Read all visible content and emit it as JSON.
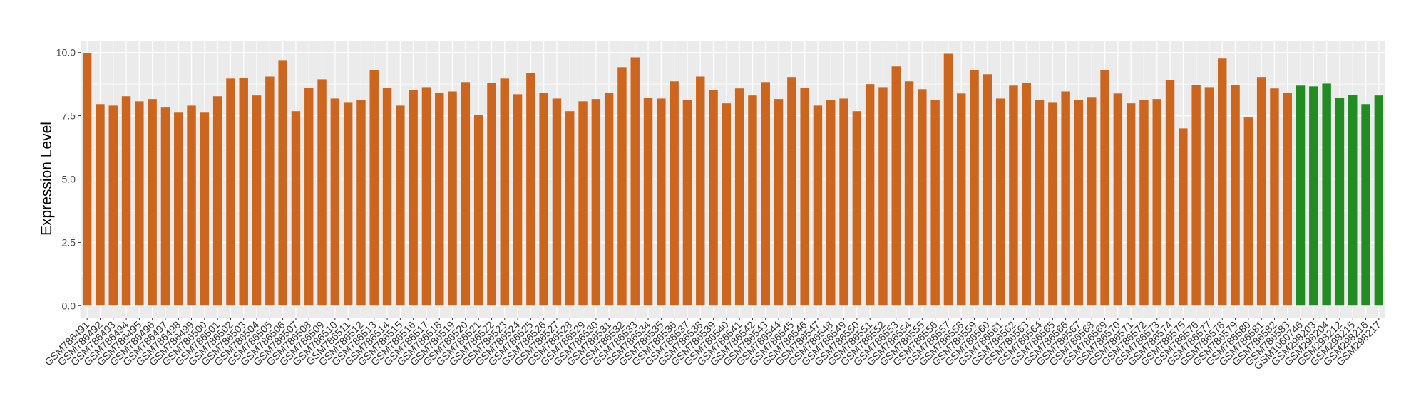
{
  "chart_data": {
    "type": "bar",
    "title": "",
    "xlabel": "",
    "ylabel": "Expression Level",
    "ylim": [
      -0.47,
      10.47
    ],
    "yticks": [
      "0.0",
      "2.5",
      "5.0",
      "7.5",
      "10.0"
    ],
    "grid": true,
    "colors": {
      "group1": "#CC661E",
      "group2": "#228B22",
      "panel": "#EBEBEB",
      "grid": "#FFFFFF"
    },
    "categories": [
      "GSM786491",
      "GSM786492",
      "GSM786493",
      "GSM786494",
      "GSM786495",
      "GSM786496",
      "GSM786497",
      "GSM786498",
      "GSM786499",
      "GSM786500",
      "GSM786501",
      "GSM786502",
      "GSM786503",
      "GSM786504",
      "GSM786505",
      "GSM786506",
      "GSM786507",
      "GSM786508",
      "GSM786509",
      "GSM786510",
      "GSM786511",
      "GSM786512",
      "GSM786513",
      "GSM786514",
      "GSM786515",
      "GSM786516",
      "GSM786517",
      "GSM786518",
      "GSM786519",
      "GSM786520",
      "GSM786521",
      "GSM786522",
      "GSM786523",
      "GSM786524",
      "GSM786525",
      "GSM786526",
      "GSM786527",
      "GSM786528",
      "GSM786529",
      "GSM786530",
      "GSM786531",
      "GSM786532",
      "GSM786533",
      "GSM786534",
      "GSM786535",
      "GSM786536",
      "GSM786537",
      "GSM786538",
      "GSM786539",
      "GSM786540",
      "GSM786541",
      "GSM786542",
      "GSM786543",
      "GSM786544",
      "GSM786545",
      "GSM786546",
      "GSM786547",
      "GSM786548",
      "GSM786549",
      "GSM786550",
      "GSM786551",
      "GSM786552",
      "GSM786553",
      "GSM786554",
      "GSM786555",
      "GSM786556",
      "GSM786557",
      "GSM786558",
      "GSM786559",
      "GSM786560",
      "GSM786561",
      "GSM786562",
      "GSM786563",
      "GSM786564",
      "GSM786565",
      "GSM786566",
      "GSM786567",
      "GSM786568",
      "GSM786569",
      "GSM786570",
      "GSM786571",
      "GSM786572",
      "GSM786573",
      "GSM786574",
      "GSM786575",
      "GSM786576",
      "GSM786577",
      "GSM786578",
      "GSM786579",
      "GSM786580",
      "GSM786581",
      "GSM786582",
      "GSM786583",
      "GSM1060746",
      "GSM298203",
      "GSM298204",
      "GSM298212",
      "GSM298215",
      "GSM298216",
      "GSM298217"
    ],
    "values": [
      9.98,
      7.96,
      7.9,
      8.27,
      8.07,
      8.16,
      7.85,
      7.65,
      7.9,
      7.65,
      8.27,
      8.97,
      9.0,
      8.3,
      9.05,
      9.7,
      7.68,
      8.6,
      8.94,
      8.18,
      8.04,
      8.13,
      9.31,
      8.6,
      7.9,
      8.52,
      8.63,
      8.41,
      8.46,
      8.83,
      7.54,
      8.8,
      8.97,
      8.35,
      9.19,
      8.41,
      8.18,
      7.68,
      8.07,
      8.16,
      8.41,
      9.42,
      9.81,
      8.21,
      8.18,
      8.86,
      8.13,
      9.05,
      8.52,
      7.99,
      8.58,
      8.3,
      8.83,
      8.16,
      9.03,
      8.6,
      7.9,
      8.13,
      8.18,
      7.68,
      8.75,
      8.63,
      9.45,
      8.86,
      8.55,
      8.13,
      9.95,
      8.38,
      9.31,
      9.14,
      8.18,
      8.69,
      8.8,
      8.13,
      8.04,
      8.46,
      8.13,
      8.24,
      9.31,
      8.38,
      7.99,
      8.13,
      8.16,
      8.91,
      7.0,
      8.72,
      8.63,
      9.76,
      8.72,
      7.43,
      9.03,
      8.58,
      8.41,
      8.69,
      8.66,
      8.77,
      8.21,
      8.32,
      7.96,
      8.3
    ],
    "groups": [
      "group1",
      "group1",
      "group1",
      "group1",
      "group1",
      "group1",
      "group1",
      "group1",
      "group1",
      "group1",
      "group1",
      "group1",
      "group1",
      "group1",
      "group1",
      "group1",
      "group1",
      "group1",
      "group1",
      "group1",
      "group1",
      "group1",
      "group1",
      "group1",
      "group1",
      "group1",
      "group1",
      "group1",
      "group1",
      "group1",
      "group1",
      "group1",
      "group1",
      "group1",
      "group1",
      "group1",
      "group1",
      "group1",
      "group1",
      "group1",
      "group1",
      "group1",
      "group1",
      "group1",
      "group1",
      "group1",
      "group1",
      "group1",
      "group1",
      "group1",
      "group1",
      "group1",
      "group1",
      "group1",
      "group1",
      "group1",
      "group1",
      "group1",
      "group1",
      "group1",
      "group1",
      "group1",
      "group1",
      "group1",
      "group1",
      "group1",
      "group1",
      "group1",
      "group1",
      "group1",
      "group1",
      "group1",
      "group1",
      "group1",
      "group1",
      "group1",
      "group1",
      "group1",
      "group1",
      "group1",
      "group1",
      "group1",
      "group1",
      "group1",
      "group1",
      "group1",
      "group1",
      "group1",
      "group1",
      "group1",
      "group1",
      "group1",
      "group1",
      "group2",
      "group2",
      "group2",
      "group2",
      "group2",
      "group2",
      "group2"
    ]
  }
}
